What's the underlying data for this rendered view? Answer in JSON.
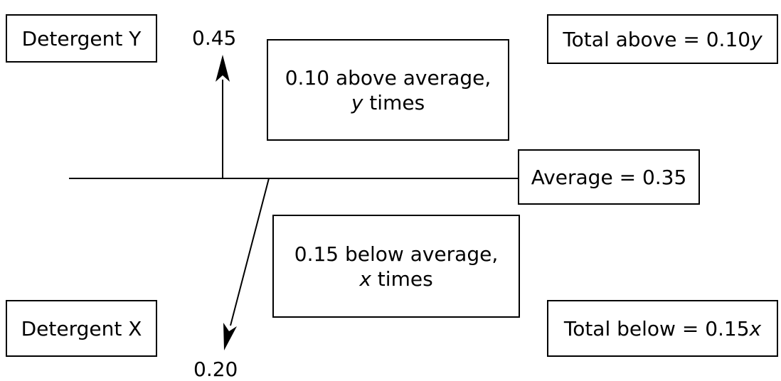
{
  "labels": {
    "detergent_y": "Detergent Y",
    "detergent_x": "Detergent X",
    "value_top": "0.45",
    "value_bottom": "0.20",
    "average": "Average = 0.35"
  },
  "above_box": {
    "line1": "0.10 above average,",
    "line2_var": "y",
    "line2_rest": " times"
  },
  "below_box": {
    "line1": "0.15 below average,",
    "line2_var": "x",
    "line2_rest": " times"
  },
  "total_above": {
    "prefix": "Total above = 0.10",
    "var": "y"
  },
  "total_below": {
    "prefix": "Total below = 0.15",
    "var": "x"
  }
}
